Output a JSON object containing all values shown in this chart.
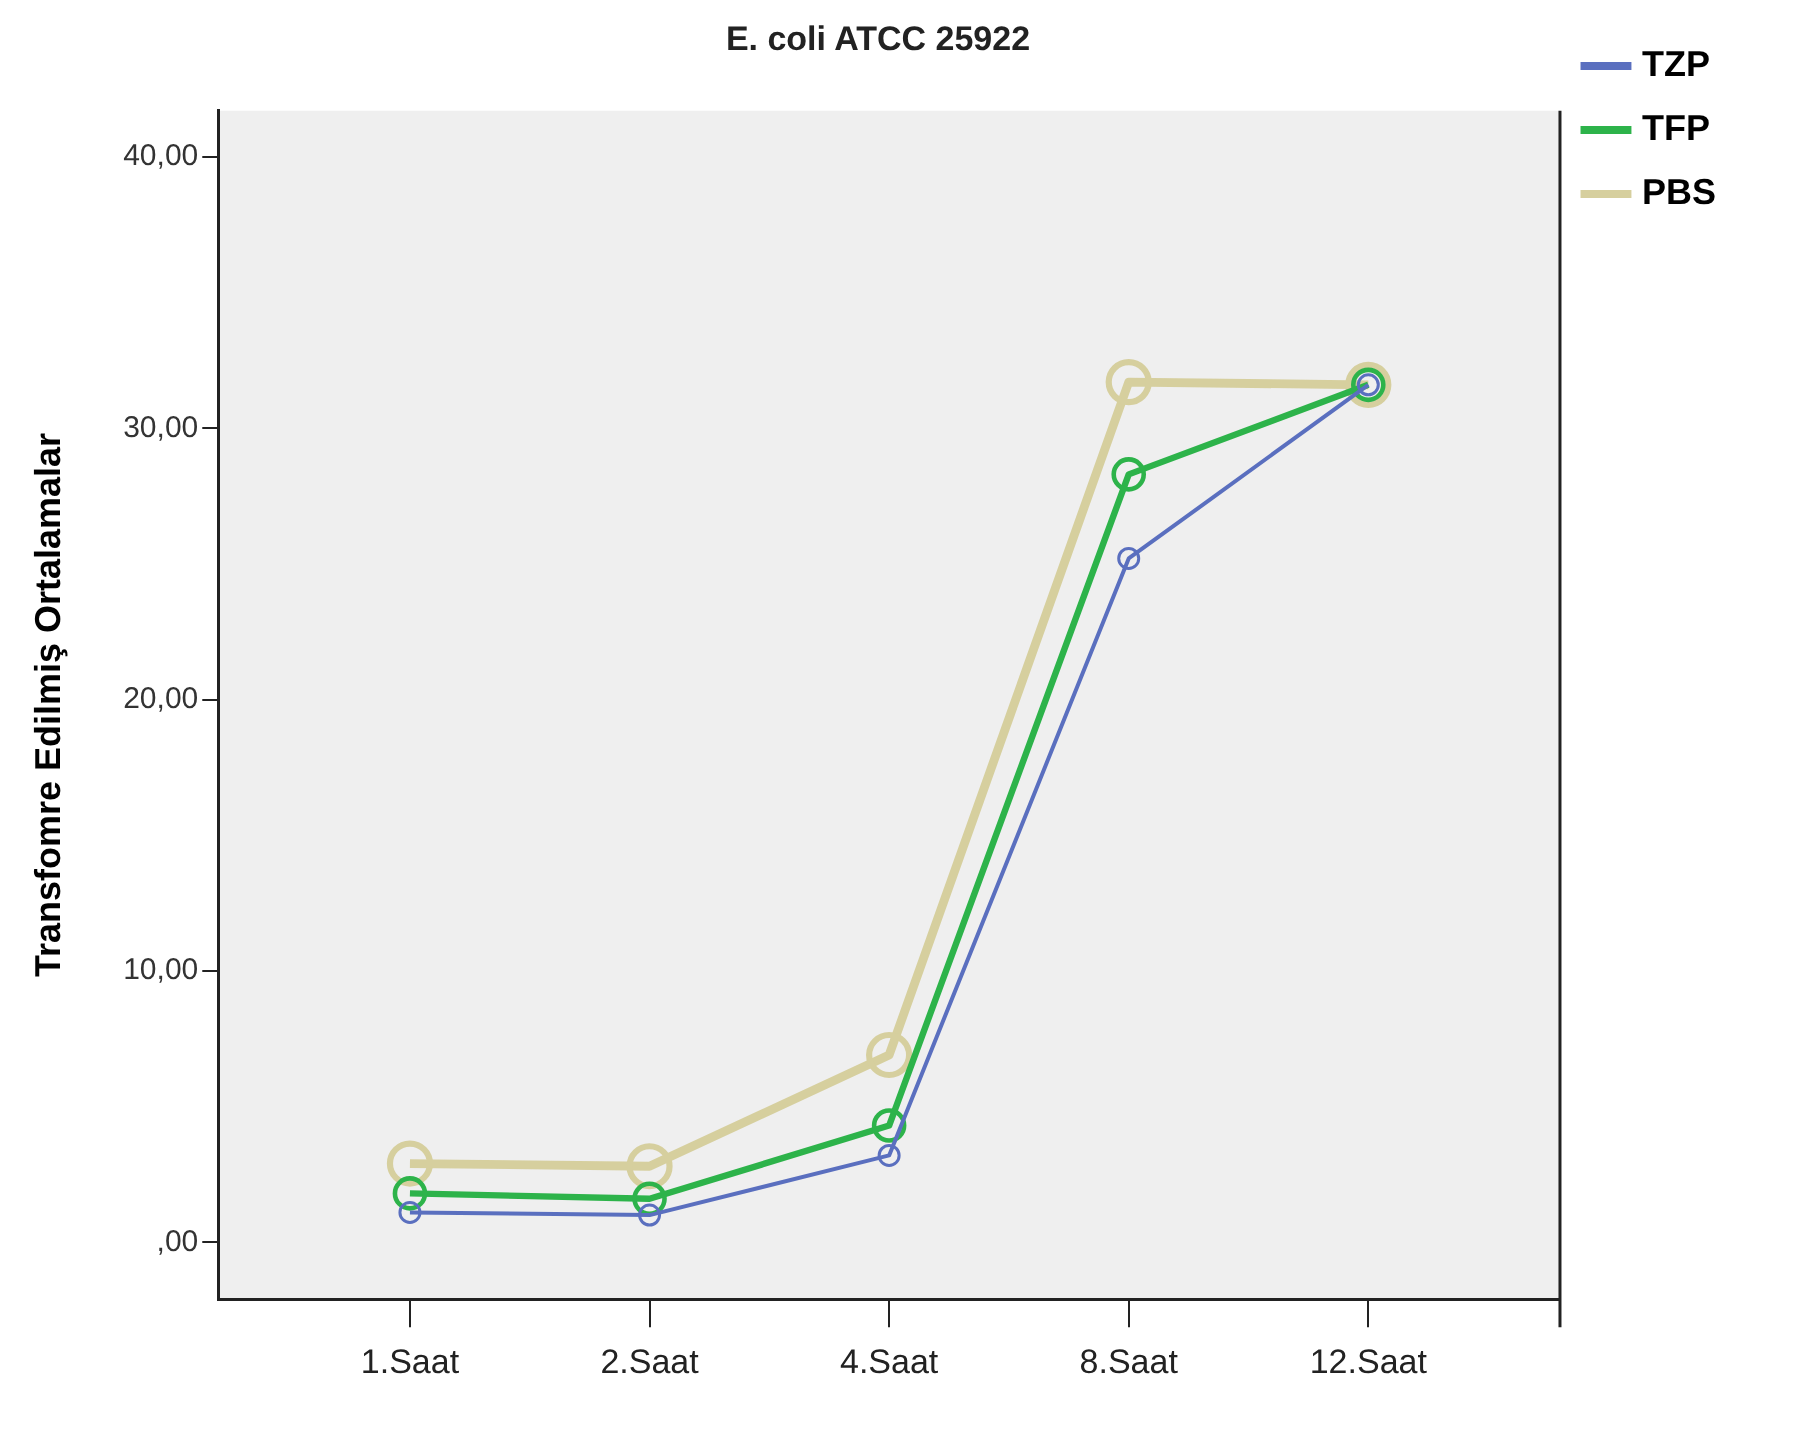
{
  "chart_data": {
    "type": "line",
    "title": "E. coli ATCC 25922",
    "ylabel": "Transfomre Edilmiş Ortalamalar",
    "categories": [
      "1.Saat",
      "2.Saat",
      "4.Saat",
      "8.Saat",
      "12.Saat"
    ],
    "series": [
      {
        "name": "TZP",
        "color": "#5a6fbf",
        "values": [
          1.1,
          1.0,
          3.2,
          25.2,
          31.6
        ]
      },
      {
        "name": "TFP",
        "color": "#2db34a",
        "values": [
          1.8,
          1.6,
          4.3,
          28.3,
          31.6
        ]
      },
      {
        "name": "PBS",
        "color": "#d6cf9e",
        "values": [
          2.9,
          2.8,
          6.9,
          31.7,
          31.6
        ]
      }
    ],
    "ylim": [
      -2.1,
      41.7
    ],
    "yticks": [
      {
        "value": 0,
        "label": ",00"
      },
      {
        "value": 10,
        "label": "10,00"
      },
      {
        "value": 20,
        "label": "20,00"
      },
      {
        "value": 30,
        "label": "30,00"
      },
      {
        "value": 40,
        "label": "40,00"
      }
    ],
    "grid": false,
    "legend": "right",
    "marker": "circle",
    "line_style": "solid"
  }
}
